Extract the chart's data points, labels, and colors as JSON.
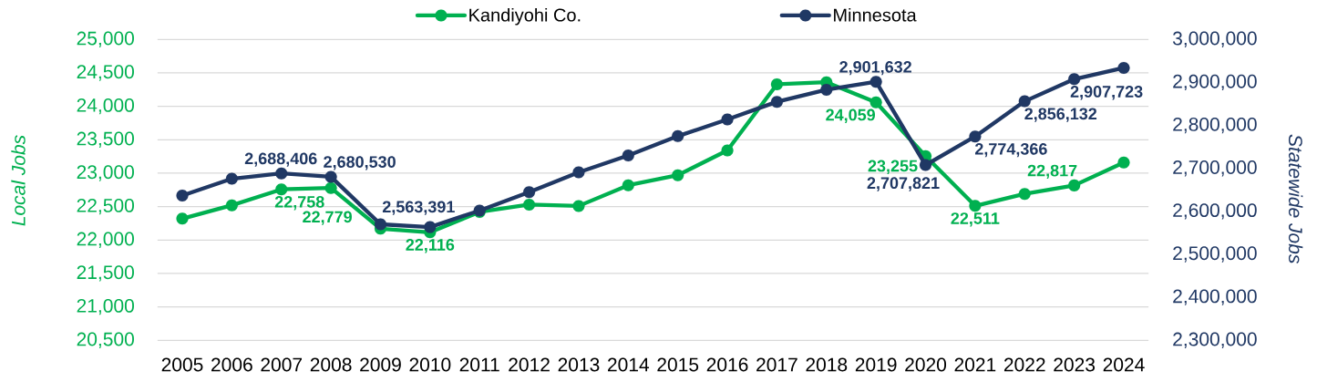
{
  "chart_data": {
    "type": "line",
    "categories": [
      "2005",
      "2006",
      "2007",
      "2008",
      "2009",
      "2010",
      "2011",
      "2012",
      "2013",
      "2014",
      "2015",
      "2016",
      "2017",
      "2018",
      "2019",
      "2020",
      "2021",
      "2022",
      "2023",
      "2024"
    ],
    "ylabel": "Local Jobs",
    "y2label": "Statewide Jobs",
    "ylim": [
      20500,
      25000
    ],
    "yticks": [
      {
        "value": 20500,
        "label": "20,500"
      },
      {
        "value": 21000,
        "label": "21,000"
      },
      {
        "value": 21500,
        "label": "21,500"
      },
      {
        "value": 22000,
        "label": "22,000"
      },
      {
        "value": 22500,
        "label": "22,500"
      },
      {
        "value": 23000,
        "label": "23,000"
      },
      {
        "value": 23500,
        "label": "23,500"
      },
      {
        "value": 24000,
        "label": "24,000"
      },
      {
        "value": 24500,
        "label": "24,500"
      },
      {
        "value": 25000,
        "label": "25,000"
      }
    ],
    "y2lim": [
      2300000,
      3000000
    ],
    "y2ticks": [
      {
        "value": 2300000,
        "label": "2,300,000"
      },
      {
        "value": 2400000,
        "label": "2,400,000"
      },
      {
        "value": 2500000,
        "label": "2,500,000"
      },
      {
        "value": 2600000,
        "label": "2,600,000"
      },
      {
        "value": 2700000,
        "label": "2,700,000"
      },
      {
        "value": 2800000,
        "label": "2,800,000"
      },
      {
        "value": 2900000,
        "label": "2,900,000"
      },
      {
        "value": 3000000,
        "label": "3,000,000"
      }
    ],
    "grid": "y",
    "legend": "top",
    "marker": "circle",
    "line_style": "solid",
    "series": [
      {
        "name": "Kandiyohi Co.",
        "color": "#00B050",
        "values": [
          22320,
          22520,
          22758,
          22779,
          22170,
          22116,
          22420,
          22530,
          22510,
          22820,
          22970,
          23340,
          24330,
          24360,
          24059,
          23255,
          22511,
          22690,
          22817,
          23160
        ],
        "value_labels": [
          null,
          null,
          "22,758",
          "22,779",
          null,
          "22,116",
          null,
          null,
          null,
          null,
          null,
          null,
          null,
          null,
          "24,059",
          "23,255",
          "22,511",
          null,
          "22,817",
          null
        ]
      },
      {
        "name": "Minnesota",
        "color": "#203864",
        "axis": "y2",
        "values": [
          2637000,
          2676000,
          2688406,
          2680530,
          2570000,
          2563391,
          2602000,
          2645000,
          2691000,
          2730000,
          2775000,
          2814000,
          2855000,
          2883000,
          2901632,
          2707821,
          2774366,
          2856132,
          2907723,
          2934000
        ],
        "value_labels": [
          null,
          null,
          "2,688,406",
          "2,680,530",
          null,
          "2,563,391",
          null,
          null,
          null,
          null,
          null,
          null,
          null,
          null,
          "2,901,632",
          "2,707,821",
          "2,774,366",
          "2,856,132",
          "2,907,723",
          null
        ]
      }
    ]
  }
}
